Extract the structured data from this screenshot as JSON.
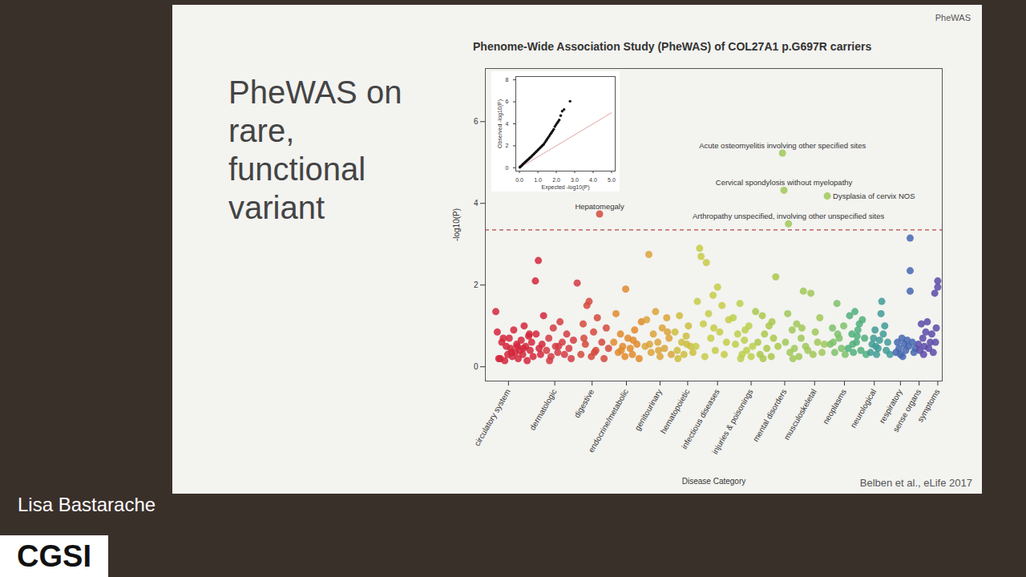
{
  "slide": {
    "corner_label": "PheWAS",
    "heading": "PheWAS on rare, functional variant",
    "caption": "Belben et al., eLife 2017",
    "speaker": "Lisa Bastarache",
    "logo": "CGSI"
  },
  "chart_data": [
    {
      "type": "scatter",
      "title": "Phenome-Wide Association Study (PheWAS) of COL27A1 p.G697R carriers",
      "x_label": "Disease Category",
      "y_label": "-log10(P)",
      "xlim": [
        -3,
        303
      ],
      "ylim": [
        -0.35,
        7.3
      ],
      "xticks": [
        {
          "value": 12.5,
          "label": "circulatory system"
        },
        {
          "value": 43.5,
          "label": "dermatologic"
        },
        {
          "value": 68.5,
          "label": "digestive"
        },
        {
          "value": 91.5,
          "label": "endocrine/metabolic"
        },
        {
          "value": 114,
          "label": "genitourinary"
        },
        {
          "value": 132.5,
          "label": "hematopoietic"
        },
        {
          "value": 152.5,
          "label": "infectious diseases"
        },
        {
          "value": 175,
          "label": "injuries & poisonings"
        },
        {
          "value": 197.5,
          "label": "mental disorders"
        },
        {
          "value": 217.5,
          "label": "musculoskeletal"
        },
        {
          "value": 237.5,
          "label": "neoplasms"
        },
        {
          "value": 257.5,
          "label": "neurological"
        },
        {
          "value": 275,
          "label": "respiratory"
        },
        {
          "value": 287.5,
          "label": "sense organs"
        },
        {
          "value": 300,
          "label": "symptoms"
        }
      ],
      "yticks": [
        0,
        2,
        4,
        6
      ],
      "grid": false,
      "marker": "circle",
      "series": [
        {
          "color": "#d3263b",
          "x": [
            4,
            5,
            7,
            8,
            10,
            11,
            12,
            13,
            14,
            15,
            16,
            17,
            18,
            19,
            20,
            21,
            22,
            23,
            24,
            25,
            26,
            27,
            28,
            29,
            30.5,
            31,
            32.5,
            33,
            34,
            35,
            36,
            9,
            6,
            14.5,
            18.5,
            22.5,
            26.5
          ],
          "values": [
            1.35,
            0.85,
            0.2,
            0.6,
            0.15,
            0.5,
            0.3,
            0.7,
            0.45,
            0.25,
            0.9,
            0.35,
            0.55,
            0.2,
            0.4,
            0.65,
            0.3,
            1.0,
            0.5,
            0.15,
            0.75,
            0.4,
            0.6,
            0.25,
            2.1,
            0.8,
            2.6,
            0.45,
            0.3,
            0.55,
            1.25,
            0.7,
            0.2,
            0.35,
            0.5,
            0.45,
            0.8
          ]
        },
        {
          "color": "#d33a43",
          "x": [
            38,
            39.5,
            41,
            42.5,
            44,
            45.5,
            47,
            48.5,
            50,
            51.5,
            53,
            54.5,
            56,
            58.5,
            40,
            46
          ],
          "values": [
            0.4,
            0.7,
            0.25,
            0.95,
            0.5,
            0.35,
            1.1,
            0.6,
            0.3,
            0.8,
            0.45,
            0.2,
            0.65,
            2.05,
            0.15,
            0.5
          ]
        },
        {
          "color": "#d4493c",
          "x": [
            61,
            62.5,
            64,
            65,
            66.5,
            68,
            69.5,
            71,
            72,
            73.5,
            75,
            76.5,
            78,
            79.5,
            63,
            70
          ],
          "values": [
            0.3,
            1.05,
            0.55,
            1.5,
            1.6,
            0.25,
            0.85,
            0.4,
            1.2,
            3.74,
            0.6,
            0.2,
            0.95,
            0.45,
            0.7,
            0.35
          ]
        },
        {
          "color": "#e0892b",
          "x": [
            83,
            84.5,
            86,
            87.5,
            89,
            90.5,
            91,
            92.5,
            94,
            95.5,
            97,
            98.5,
            100,
            101.5,
            88,
            96
          ],
          "values": [
            0.6,
            1.3,
            0.35,
            0.8,
            0.5,
            0.25,
            1.9,
            0.7,
            0.45,
            0.3,
            0.9,
            0.55,
            0.2,
            1.1,
            0.4,
            0.65
          ]
        },
        {
          "color": "#dba33a",
          "x": [
            104,
            105,
            106.5,
            108,
            109.5,
            111,
            112.5,
            114,
            115.5,
            117,
            118.5,
            120,
            121.5,
            107,
            113,
            119
          ],
          "values": [
            0.5,
            1.15,
            2.75,
            0.35,
            0.8,
            1.35,
            0.6,
            0.25,
            0.95,
            0.45,
            1.2,
            0.7,
            0.3,
            0.55,
            0.4,
            0.85
          ]
        },
        {
          "color": "#cdbd3e",
          "x": [
            124,
            125.5,
            127,
            128.5,
            130,
            131.5,
            133,
            134.5,
            136,
            126,
            132
          ],
          "values": [
            0.85,
            0.4,
            1.25,
            0.6,
            0.3,
            0.75,
            1.0,
            0.5,
            0.35,
            0.2,
            0.55
          ]
        },
        {
          "color": "#c6cb46",
          "x": [
            138,
            139,
            140.5,
            141.5,
            143,
            145,
            146.5,
            148,
            149.5,
            151,
            152.5,
            154,
            155.5,
            157,
            158.5,
            160,
            144,
            150
          ],
          "values": [
            0.5,
            1.6,
            2.9,
            2.7,
            1.05,
            2.55,
            1.3,
            0.7,
            1.75,
            0.4,
            1.95,
            0.85,
            1.5,
            0.3,
            0.6,
            1.15,
            0.25,
            0.95
          ]
        },
        {
          "color": "#bccf4b",
          "x": [
            163,
            164.5,
            166,
            167.5,
            169,
            170.5,
            172,
            173.5,
            175,
            176,
            168,
            171
          ],
          "values": [
            1.2,
            0.55,
            0.8,
            1.55,
            0.3,
            0.65,
            0.4,
            1.0,
            0.25,
            0.5,
            0.2,
            0.9
          ]
        },
        {
          "color": "#aac84b",
          "x": [
            178,
            179.5,
            181,
            182.5,
            184,
            185.5,
            187,
            188.5,
            190,
            191.5,
            193,
            183,
            189
          ],
          "values": [
            1.35,
            0.6,
            0.3,
            1.25,
            0.8,
            0.45,
            1.0,
            0.25,
            0.7,
            2.2,
            0.5,
            0.2,
            1.1
          ]
        },
        {
          "color": "#a0c858",
          "x": [
            196,
            197,
            200,
            198,
            199.5,
            201,
            202.5,
            204,
            205.5,
            207,
            208.5,
            210,
            211.5,
            213,
            215,
            216.5,
            218,
            219.5,
            221,
            222.5,
            224,
            226,
            203,
            209
          ],
          "values": [
            5.23,
            4.32,
            3.5,
            0.6,
            1.3,
            0.35,
            0.9,
            0.45,
            1.05,
            0.25,
            0.7,
            1.85,
            0.5,
            0.4,
            1.8,
            0.3,
            0.85,
            0.6,
            1.2,
            0.35,
            0.55,
            4.18,
            0.2,
            0.95
          ]
        },
        {
          "color": "#7dc16a",
          "x": [
            228,
            229.5,
            231,
            232.5,
            234,
            235.5,
            237,
            238,
            230,
            233
          ],
          "values": [
            0.55,
            0.95,
            0.35,
            1.55,
            0.7,
            0.45,
            1.0,
            0.3,
            0.6,
            0.8
          ]
        },
        {
          "color": "#4faf7b",
          "x": [
            240,
            241,
            242.5,
            243.5,
            244.5,
            245.5,
            246.5,
            247.5,
            248.5,
            249.5,
            251,
            252,
            243,
            246
          ],
          "values": [
            0.45,
            1.25,
            0.8,
            0.35,
            1.35,
            0.6,
            0.9,
            1.05,
            0.4,
            1.15,
            0.7,
            0.3,
            0.55,
            0.75
          ]
        },
        {
          "color": "#3f9b96",
          "x": [
            255,
            256,
            257,
            258,
            259,
            260,
            261,
            262.5,
            263.5,
            264.5,
            265.5,
            266.5,
            268,
            258.5,
            262
          ],
          "values": [
            0.35,
            0.55,
            0.7,
            0.9,
            0.3,
            0.45,
            0.65,
            1.6,
            0.8,
            1.0,
            0.4,
            0.6,
            0.3,
            0.5,
            1.3
          ]
        },
        {
          "color": "#4466b0",
          "x": [
            272,
            273,
            274,
            275,
            276,
            277.5,
            278.5,
            279.5,
            280.5,
            281.5,
            281.5,
            281.5,
            283,
            284,
            285,
            276.5
          ],
          "values": [
            0.35,
            0.6,
            0.45,
            0.3,
            0.7,
            0.55,
            0.4,
            0.65,
            0.5,
            3.15,
            2.35,
            1.85,
            0.6,
            0.35,
            0.45,
            0.25
          ]
        },
        {
          "color": "#5a4aa8",
          "x": [
            287,
            288,
            289,
            290,
            291,
            292,
            293,
            294,
            295,
            296,
            297,
            298,
            299,
            300,
            300,
            298.5,
            290.5
          ],
          "values": [
            0.55,
            0.4,
            1.05,
            0.7,
            0.5,
            0.85,
            1.1,
            0.45,
            0.6,
            0.8,
            0.35,
            1.8,
            0.95,
            2.1,
            1.95,
            0.6,
            0.3
          ]
        }
      ],
      "threshold": {
        "y": 3.35,
        "color": "#b5473f",
        "line_style": "dashed"
      },
      "annotations": [
        {
          "text": "Acute osteomyelitis involving other specified sites",
          "x": 196,
          "y": 5.23
        },
        {
          "text": "Cervical spondylosis without myelopathy",
          "x": 197,
          "y": 4.32
        },
        {
          "text": "Dysplasia of cervix NOS",
          "x": 226,
          "y": 4.18
        },
        {
          "text": "Arthropathy unspecified, involving other unspecified sites",
          "x": 200,
          "y": 3.5
        },
        {
          "text": "Hepatomegaly",
          "x": 73.5,
          "y": 3.74
        }
      ]
    },
    {
      "type": "scatter",
      "x_label": "Expected -log10(P)",
      "y_label": "Observed -log10(P)",
      "xlim": [
        -0.2,
        5.2
      ],
      "ylim": [
        -0.3,
        8.3
      ],
      "xticks": [
        0,
        1,
        2,
        3,
        4,
        5
      ],
      "yticks": [
        0,
        2,
        4,
        6,
        8
      ],
      "grid": false,
      "marker": "circle",
      "color": "#111111",
      "x": [
        0.02,
        0.05,
        0.08,
        0.12,
        0.16,
        0.2,
        0.25,
        0.3,
        0.35,
        0.4,
        0.45,
        0.5,
        0.55,
        0.6,
        0.66,
        0.72,
        0.78,
        0.84,
        0.9,
        0.96,
        1.02,
        1.08,
        1.14,
        1.2,
        1.26,
        1.32,
        1.38,
        1.44,
        1.5,
        1.56,
        1.62,
        1.68,
        1.74,
        1.8,
        1.86,
        1.92,
        1.98,
        2.04,
        2.1,
        2.16,
        2.24,
        2.32,
        2.42,
        2.75
      ],
      "values": [
        0.05,
        0.1,
        0.15,
        0.2,
        0.28,
        0.35,
        0.42,
        0.5,
        0.58,
        0.65,
        0.72,
        0.8,
        0.88,
        0.95,
        1.05,
        1.15,
        1.25,
        1.35,
        1.45,
        1.55,
        1.65,
        1.75,
        1.85,
        1.95,
        2.05,
        2.15,
        2.3,
        2.45,
        2.6,
        2.75,
        2.9,
        3.05,
        3.2,
        3.35,
        3.5,
        3.75,
        3.9,
        4.05,
        4.2,
        4.35,
        4.75,
        5.15,
        5.3,
        6.05
      ],
      "reference_line": {
        "x": [
          0,
          5
        ],
        "values": [
          0,
          5
        ],
        "color": "#e3a3a3"
      }
    }
  ]
}
